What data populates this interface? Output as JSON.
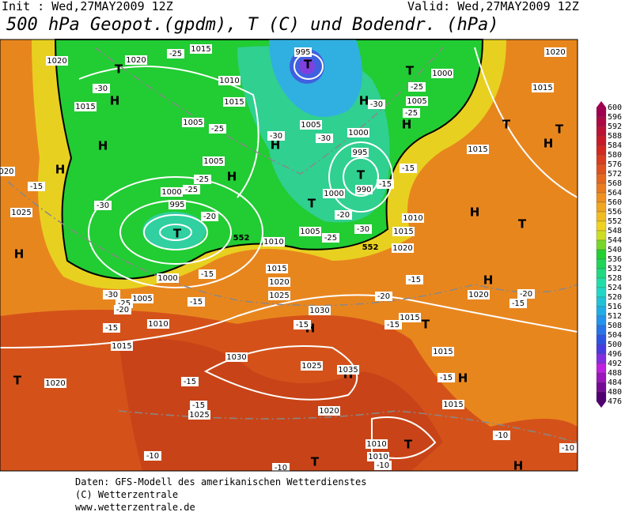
{
  "header": {
    "init": "Init : Wed,27MAY2009 12Z",
    "valid": "Valid: Wed,27MAY2009 12Z",
    "title": "500 hPa Geopot.(gpdm), T (C) und Bodendr. (hPa)"
  },
  "map": {
    "pressure_centers": [
      "T",
      "H",
      "H",
      "H",
      "H",
      "T",
      "T",
      "T",
      "H",
      "T",
      "H",
      "H",
      "T",
      "T",
      "H",
      "T",
      "T",
      "H",
      "H",
      "T",
      "H",
      "H",
      "T",
      "H",
      "H",
      "T",
      "T",
      "H"
    ],
    "isobar_labels": [
      "1015",
      "1020",
      "1020",
      "1010",
      "1015",
      "1005",
      "1015",
      "995",
      "1000",
      "1005",
      "1005",
      "1000",
      "995",
      "990",
      "1000",
      "1005",
      "1000",
      "995",
      "1010",
      "1005",
      "1010",
      "1015",
      "1020",
      "1015",
      "1020",
      "1025",
      "1030",
      "1000",
      "1005",
      "1010",
      "1015",
      "1020",
      "1030",
      "1025",
      "1035",
      "1020",
      "1025",
      "1015",
      "1015",
      "1015",
      "1020",
      "1015",
      "1015",
      "1020",
      "1010",
      "1010",
      "1025",
      "020"
    ],
    "temperature_labels": [
      "-25",
      "-30",
      "-25",
      "-30",
      "-30",
      "-25",
      "-30",
      "-25",
      "-15",
      "-15",
      "-20",
      "-25",
      "-30",
      "-25",
      "-25",
      "-20",
      "-30",
      "-15",
      "-15",
      "-15",
      "-30",
      "-25",
      "-20",
      "-15",
      "-15",
      "-20",
      "-15",
      "-15",
      "-15",
      "-15",
      "-15",
      "-15",
      "-20",
      "-10",
      "-10",
      "-10",
      "-10",
      "-10"
    ],
    "contour_labels": [
      "552",
      "552"
    ]
  },
  "colorbar": {
    "labels": [
      600,
      596,
      592,
      588,
      584,
      580,
      576,
      572,
      568,
      564,
      560,
      556,
      552,
      548,
      544,
      540,
      536,
      532,
      528,
      524,
      520,
      516,
      512,
      508,
      504,
      500,
      496,
      492,
      488,
      484,
      480,
      476
    ]
  },
  "footer": [
    "Daten: GFS-Modell des amerikanischen Wetterdienstes",
    "(C) Wetterzentrale",
    "www.wetterzentrale.de"
  ]
}
